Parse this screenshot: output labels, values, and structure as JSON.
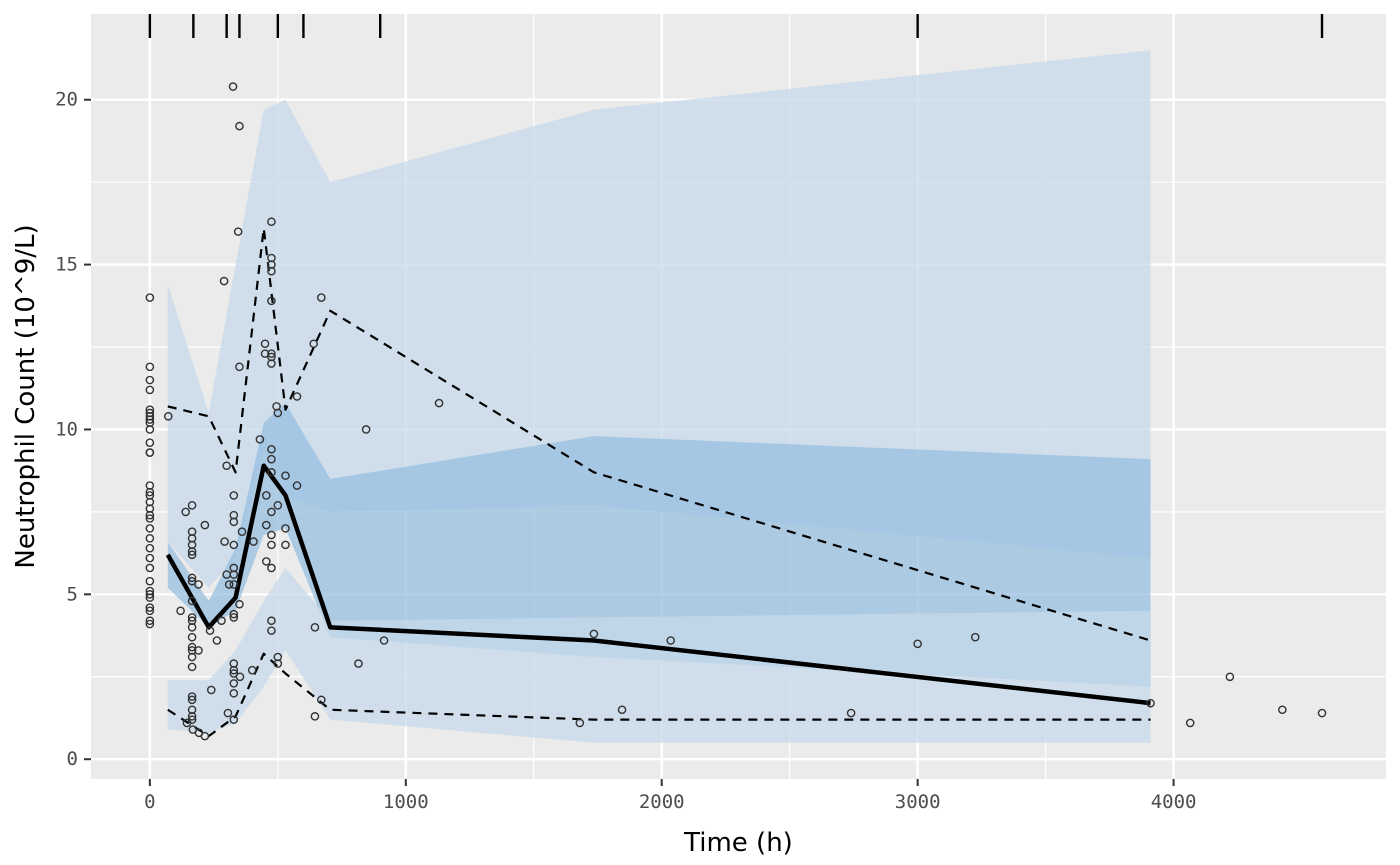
{
  "chart_data": {
    "type": "line",
    "title": "",
    "xlabel": "Time (h)",
    "ylabel": "Neutrophil Count (10^9/L)",
    "xlim": [
      -230,
      4830
    ],
    "ylim": [
      -0.6,
      22.6
    ],
    "x_ticks": [
      0,
      1000,
      2000,
      3000,
      4000
    ],
    "x_tick_labels": [
      "0",
      "1000",
      "2000",
      "3000",
      "4000"
    ],
    "y_ticks": [
      0,
      5,
      10,
      15,
      20
    ],
    "y_tick_labels": [
      "0",
      "5",
      "10",
      "15",
      "20"
    ],
    "grid": true,
    "legend": "none",
    "colors": {
      "panel": "#ebebeb",
      "grid": "#ffffff",
      "outer_band": "#c6d9ea",
      "median_band": "#98bfe0",
      "median_line": "#000000",
      "percentile_lines": "#000000",
      "points": "#333333"
    },
    "bin_x": [
      70,
      230,
      335,
      445,
      530,
      705,
      1735,
      3910
    ],
    "bands": [
      {
        "name": "upper-percentile PI",
        "lower": [
          6.6,
          5.2,
          6.1,
          9.3,
          8.0,
          7.5,
          7.7,
          6.1
        ],
        "upper": [
          14.4,
          10.5,
          15.0,
          19.7,
          20.0,
          17.5,
          19.7,
          21.5
        ]
      },
      {
        "name": "median PI",
        "lower": [
          5.2,
          4.0,
          4.5,
          6.8,
          7.0,
          3.7,
          3.1,
          2.2
        ],
        "upper": [
          6.6,
          4.8,
          6.4,
          10.2,
          10.8,
          8.5,
          9.8,
          9.1
        ]
      },
      {
        "name": "lower-percentile PI",
        "lower": [
          0.9,
          0.8,
          1.1,
          2.2,
          3.3,
          1.2,
          0.5,
          0.5
        ],
        "upper": [
          2.4,
          2.4,
          3.3,
          4.8,
          5.8,
          4.2,
          4.3,
          4.5
        ]
      }
    ],
    "series": [
      {
        "name": "",
        "style": "solid",
        "x": [
          70,
          230,
          335,
          445,
          530,
          705,
          1735,
          3910
        ],
        "y": [
          6.2,
          4.0,
          4.9,
          8.9,
          8.0,
          4.0,
          3.6,
          1.7
        ]
      },
      {
        "name": "",
        "style": "dashed",
        "x": [
          70,
          230,
          335,
          445,
          530,
          705,
          1735,
          3910
        ],
        "y": [
          10.7,
          10.4,
          8.7,
          16.1,
          10.6,
          13.6,
          8.7,
          3.6
        ]
      },
      {
        "name": "",
        "style": "dashed",
        "x": [
          70,
          230,
          335,
          445,
          530,
          705,
          1735,
          3910
        ],
        "y": [
          1.5,
          0.7,
          1.3,
          3.2,
          2.6,
          1.5,
          1.2,
          1.2
        ]
      }
    ],
    "bin_boundaries": [
      0,
      170,
      300,
      350,
      500,
      600,
      900,
      3000,
      4580
    ],
    "points": [
      [
        0,
        14.0
      ],
      [
        0,
        11.9
      ],
      [
        0,
        11.5
      ],
      [
        0,
        11.2
      ],
      [
        0,
        10.6
      ],
      [
        0,
        10.5
      ],
      [
        0,
        10.4
      ],
      [
        0,
        10.3
      ],
      [
        0,
        10.2
      ],
      [
        0,
        10.0
      ],
      [
        0,
        9.6
      ],
      [
        0,
        9.3
      ],
      [
        0,
        9.3
      ],
      [
        0,
        8.3
      ],
      [
        0,
        8.1
      ],
      [
        0,
        8.0
      ],
      [
        0,
        7.8
      ],
      [
        0,
        7.6
      ],
      [
        0,
        7.4
      ],
      [
        0,
        7.3
      ],
      [
        0,
        7.0
      ],
      [
        0,
        6.7
      ],
      [
        0,
        6.4
      ],
      [
        0,
        6.1
      ],
      [
        0,
        5.8
      ],
      [
        0,
        5.4
      ],
      [
        0,
        5.1
      ],
      [
        0,
        5.0
      ],
      [
        0,
        4.9
      ],
      [
        0,
        4.6
      ],
      [
        0,
        4.5
      ],
      [
        0,
        4.2
      ],
      [
        0,
        4.1
      ],
      [
        72,
        10.4
      ],
      [
        120,
        4.5
      ],
      [
        140,
        7.5
      ],
      [
        145,
        1.1
      ],
      [
        165,
        7.7
      ],
      [
        165,
        6.9
      ],
      [
        165,
        6.7
      ],
      [
        165,
        6.5
      ],
      [
        165,
        6.3
      ],
      [
        165,
        6.2
      ],
      [
        165,
        5.5
      ],
      [
        165,
        5.4
      ],
      [
        165,
        4.8
      ],
      [
        165,
        4.3
      ],
      [
        165,
        4.2
      ],
      [
        165,
        4.0
      ],
      [
        165,
        3.7
      ],
      [
        165,
        3.4
      ],
      [
        165,
        3.3
      ],
      [
        165,
        3.1
      ],
      [
        165,
        2.8
      ],
      [
        165,
        1.9
      ],
      [
        165,
        1.8
      ],
      [
        165,
        1.5
      ],
      [
        165,
        1.3
      ],
      [
        165,
        1.2
      ],
      [
        168,
        0.9
      ],
      [
        190,
        5.3
      ],
      [
        190,
        3.3
      ],
      [
        192,
        0.8
      ],
      [
        215,
        7.1
      ],
      [
        215,
        0.7
      ],
      [
        235,
        3.9
      ],
      [
        240,
        2.1
      ],
      [
        262,
        3.6
      ],
      [
        280,
        4.2
      ],
      [
        290,
        14.5
      ],
      [
        292,
        6.6
      ],
      [
        300,
        8.9
      ],
      [
        300,
        5.6
      ],
      [
        305,
        1.4
      ],
      [
        310,
        5.3
      ],
      [
        325,
        20.4
      ],
      [
        328,
        8.0
      ],
      [
        328,
        7.4
      ],
      [
        328,
        7.2
      ],
      [
        328,
        6.5
      ],
      [
        328,
        5.8
      ],
      [
        328,
        5.6
      ],
      [
        328,
        5.3
      ],
      [
        328,
        4.4
      ],
      [
        328,
        4.3
      ],
      [
        328,
        2.9
      ],
      [
        328,
        2.7
      ],
      [
        328,
        2.6
      ],
      [
        328,
        2.3
      ],
      [
        328,
        2.0
      ],
      [
        328,
        1.2
      ],
      [
        345,
        16.0
      ],
      [
        350,
        19.2
      ],
      [
        350,
        11.9
      ],
      [
        350,
        4.7
      ],
      [
        352,
        2.5
      ],
      [
        360,
        6.9
      ],
      [
        400,
        2.7
      ],
      [
        405,
        6.6
      ],
      [
        430,
        9.7
      ],
      [
        450,
        12.6
      ],
      [
        450,
        12.3
      ],
      [
        455,
        8.0
      ],
      [
        455,
        7.1
      ],
      [
        455,
        6.0
      ],
      [
        475,
        16.3
      ],
      [
        475,
        15.2
      ],
      [
        475,
        15.0
      ],
      [
        475,
        14.8
      ],
      [
        475,
        13.9
      ],
      [
        475,
        12.3
      ],
      [
        475,
        12.2
      ],
      [
        475,
        12.0
      ],
      [
        475,
        9.4
      ],
      [
        475,
        9.1
      ],
      [
        475,
        8.7
      ],
      [
        475,
        7.5
      ],
      [
        475,
        6.8
      ],
      [
        475,
        6.5
      ],
      [
        475,
        5.8
      ],
      [
        475,
        4.2
      ],
      [
        475,
        3.9
      ],
      [
        495,
        10.7
      ],
      [
        500,
        10.5
      ],
      [
        500,
        7.7
      ],
      [
        500,
        3.1
      ],
      [
        500,
        2.9
      ],
      [
        530,
        8.6
      ],
      [
        530,
        7.0
      ],
      [
        530,
        6.5
      ],
      [
        575,
        11.0
      ],
      [
        575,
        8.3
      ],
      [
        640,
        12.6
      ],
      [
        645,
        4.0
      ],
      [
        645,
        1.3
      ],
      [
        670,
        14.0
      ],
      [
        670,
        1.8
      ],
      [
        815,
        2.9
      ],
      [
        845,
        10.0
      ],
      [
        915,
        3.6
      ],
      [
        1130,
        10.8
      ],
      [
        1680,
        1.1
      ],
      [
        1735,
        3.8
      ],
      [
        1845,
        1.5
      ],
      [
        2035,
        3.6
      ],
      [
        2740,
        1.4
      ],
      [
        3000,
        3.5
      ],
      [
        3225,
        3.7
      ],
      [
        3910,
        1.7
      ],
      [
        4065,
        1.1
      ],
      [
        4220,
        2.5
      ],
      [
        4425,
        1.5
      ],
      [
        4580,
        1.4
      ]
    ]
  }
}
